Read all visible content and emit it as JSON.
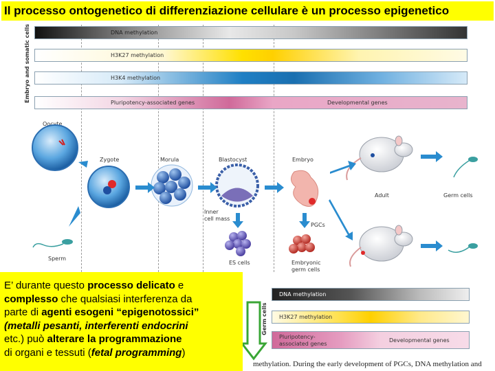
{
  "title": "Il processo ontogenetico di differenziazione cellulare è un processo epigenetico",
  "sidebar_top": "Embryo and somatic cells",
  "sidebar_bottom": "Germ cells",
  "bars_top": {
    "dna_methylation": "DNA methylation",
    "h3k27": "H3K27 methylation",
    "h3k4": "H3K4 methylation",
    "pluripotency": "Pluripotency-associated genes",
    "developmental": "Developmental genes"
  },
  "stages": {
    "oocyte": "Oocyte",
    "zygote": "Zygote",
    "morula": "Morula",
    "blastocyst": "Blastocyst",
    "embryo": "Embryo",
    "adult": "Adult",
    "germ_cells": "Germ cells",
    "inner_cell_mass_1": "Inner",
    "inner_cell_mass_2": "cell mass",
    "pgcs": "PGCs",
    "sperm": "Sperm",
    "es_cells": "ES cells",
    "embryonic_germ_1": "Embryonic",
    "embryonic_germ_2": "germ cells"
  },
  "bars_bottom": {
    "dna_methylation": "DNA methylation",
    "h3k27": "H3K27 methylation",
    "pluripotency_1": "Pluripotency-",
    "pluripotency_2": "associated genes",
    "developmental": "Developmental genes"
  },
  "callout": {
    "l1a": "E’ durante questo ",
    "l1b": "processo delicato",
    "l1c": " e",
    "l2a": "complesso",
    "l2b": " che qualsiasi interferenza da",
    "l3a": "parte di ",
    "l3b": "agenti esogeni “epigenotossici”",
    "l4": "(metalli pesanti, interferenti endocrini",
    "l5a": "etc.) può ",
    "l5b": "alterare la programmazione",
    "l6a": "di organi e  tessuti",
    "l6b": " (",
    "l6c": "fetal programming",
    "l6d": ")"
  },
  "footnote": "methylation. During the early development of PGCs, DNA methylation and"
}
